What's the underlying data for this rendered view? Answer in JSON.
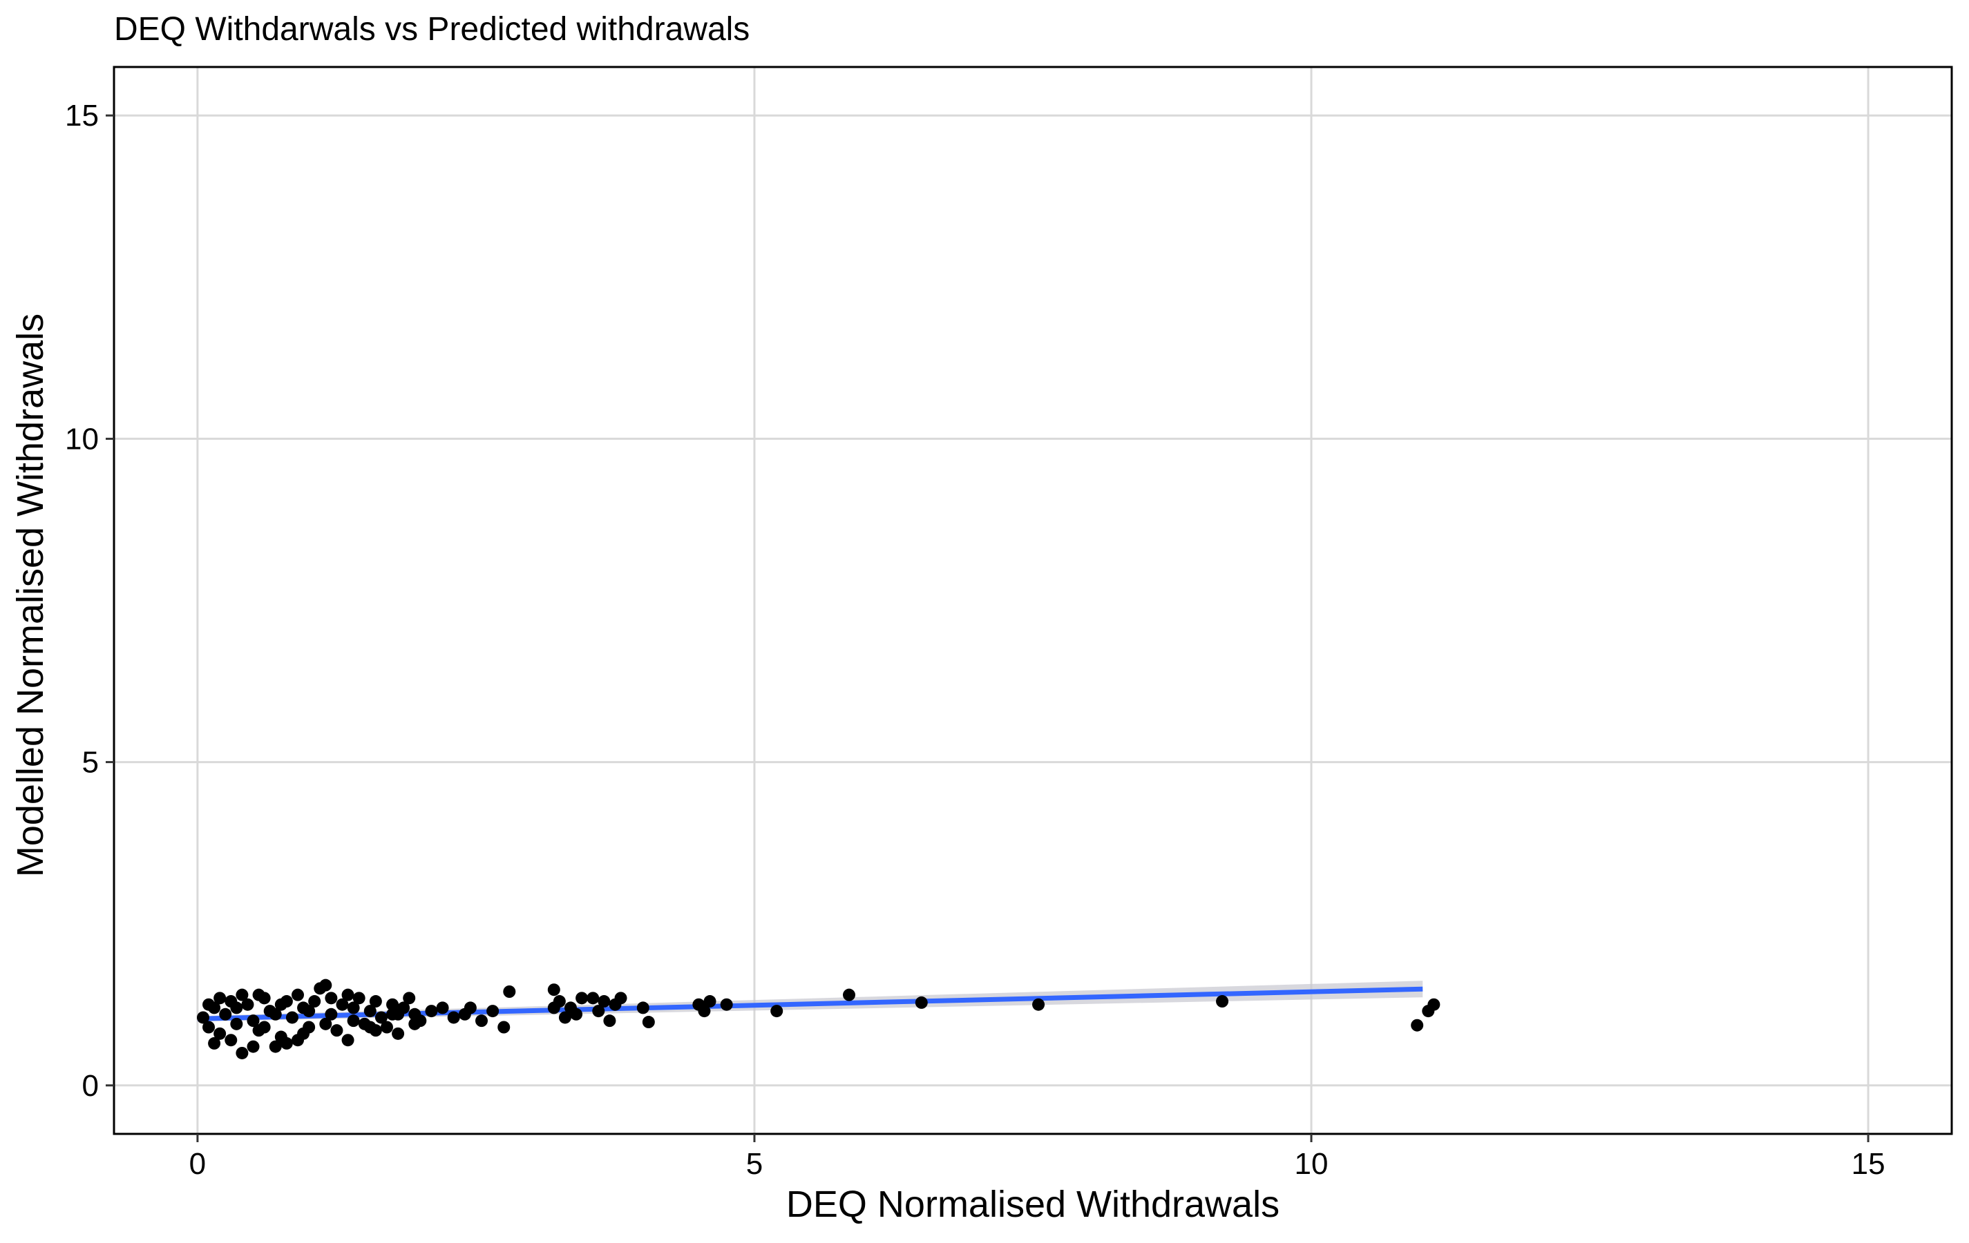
{
  "chart_data": {
    "type": "scatter",
    "title": "DEQ Withdarwals vs  Predicted withdrawals",
    "xlabel": "DEQ Normalised Withdrawals",
    "ylabel": "Modelled Normalised Withdrawals",
    "xlim": [
      -0.75,
      15.75
    ],
    "ylim": [
      -0.75,
      15.75
    ],
    "x_ticks": [
      0,
      5,
      10,
      15
    ],
    "y_ticks": [
      0,
      5,
      10,
      15
    ],
    "x_tick_labels": [
      "0",
      "5",
      "10",
      "15"
    ],
    "y_tick_labels": [
      "0",
      "5",
      "10",
      "15"
    ],
    "grid": true,
    "legend": "none",
    "point_color": "#000000",
    "trend_color": "#3366FF",
    "trend_band_color": "#C8C8D0",
    "trend_line": {
      "x_start": 0.0,
      "y_start": 1.03,
      "x_end": 11.0,
      "y_end": 1.49
    },
    "cluster_points": [
      [
        0.05,
        1.05
      ],
      [
        0.1,
        0.9
      ],
      [
        0.15,
        1.2
      ],
      [
        0.2,
        0.8
      ],
      [
        0.25,
        1.1
      ],
      [
        0.3,
        1.3
      ],
      [
        0.35,
        0.95
      ],
      [
        0.4,
        0.5
      ],
      [
        0.45,
        1.25
      ],
      [
        0.5,
        1.0
      ],
      [
        0.55,
        0.85
      ],
      [
        0.6,
        1.35
      ],
      [
        0.65,
        1.15
      ],
      [
        0.7,
        0.6
      ],
      [
        0.75,
        0.75
      ],
      [
        0.8,
        1.3
      ],
      [
        0.85,
        1.05
      ],
      [
        0.9,
        0.7
      ],
      [
        0.95,
        1.2
      ],
      [
        1.0,
        0.9
      ],
      [
        1.05,
        1.3
      ],
      [
        1.1,
        1.5
      ],
      [
        1.15,
        1.55
      ],
      [
        1.2,
        1.1
      ],
      [
        1.25,
        0.85
      ],
      [
        1.3,
        1.25
      ],
      [
        1.35,
        0.7
      ],
      [
        1.4,
        1.0
      ],
      [
        1.45,
        1.35
      ],
      [
        1.5,
        0.95
      ],
      [
        1.55,
        1.15
      ],
      [
        1.6,
        1.3
      ],
      [
        1.65,
        1.05
      ],
      [
        1.7,
        0.9
      ],
      [
        1.75,
        1.25
      ],
      [
        1.8,
        0.8
      ],
      [
        1.85,
        1.2
      ],
      [
        1.9,
        1.35
      ],
      [
        1.95,
        1.1
      ],
      [
        2.0,
        1.0
      ],
      [
        2.1,
        1.15
      ],
      [
        2.2,
        1.2
      ],
      [
        2.3,
        1.05
      ],
      [
        2.4,
        1.1
      ],
      [
        2.45,
        1.2
      ],
      [
        2.55,
        1.0
      ],
      [
        2.65,
        1.15
      ],
      [
        2.75,
        0.9
      ],
      [
        0.1,
        1.25
      ],
      [
        0.2,
        1.35
      ],
      [
        0.3,
        0.7
      ],
      [
        0.4,
        1.4
      ],
      [
        0.5,
        0.6
      ],
      [
        0.6,
        0.9
      ],
      [
        0.7,
        1.1
      ],
      [
        0.8,
        0.65
      ],
      [
        0.9,
        1.4
      ],
      [
        1.0,
        1.15
      ],
      [
        1.2,
        1.35
      ],
      [
        1.4,
        1.2
      ],
      [
        1.6,
        0.85
      ],
      [
        1.8,
        1.1
      ],
      [
        0.15,
        0.65
      ],
      [
        0.35,
        1.2
      ],
      [
        0.55,
        1.4
      ],
      [
        0.75,
        1.25
      ],
      [
        0.95,
        0.8
      ],
      [
        1.15,
        0.95
      ],
      [
        1.35,
        1.4
      ],
      [
        1.55,
        0.9
      ],
      [
        1.75,
        1.1
      ],
      [
        1.95,
        0.95
      ]
    ],
    "outlier_points": [
      [
        2.8,
        1.45
      ],
      [
        3.2,
        1.2
      ],
      [
        3.25,
        1.3
      ],
      [
        3.3,
        1.05
      ],
      [
        3.35,
        1.2
      ],
      [
        3.4,
        1.1
      ],
      [
        3.55,
        1.35
      ],
      [
        3.65,
        1.3
      ],
      [
        3.7,
        1.0
      ],
      [
        3.75,
        1.25
      ],
      [
        3.8,
        1.35
      ],
      [
        4.0,
        1.2
      ],
      [
        4.05,
        0.98
      ],
      [
        4.55,
        1.15
      ],
      [
        4.6,
        1.3
      ],
      [
        4.75,
        1.25
      ],
      [
        5.2,
        1.15
      ],
      [
        5.85,
        1.4
      ],
      [
        6.5,
        1.28
      ],
      [
        7.55,
        1.25
      ],
      [
        9.2,
        1.3
      ],
      [
        10.95,
        0.93
      ],
      [
        11.05,
        1.15
      ],
      [
        11.1,
        1.25
      ],
      [
        3.2,
        1.48
      ],
      [
        3.45,
        1.35
      ],
      [
        3.6,
        1.15
      ],
      [
        4.5,
        1.25
      ]
    ]
  }
}
